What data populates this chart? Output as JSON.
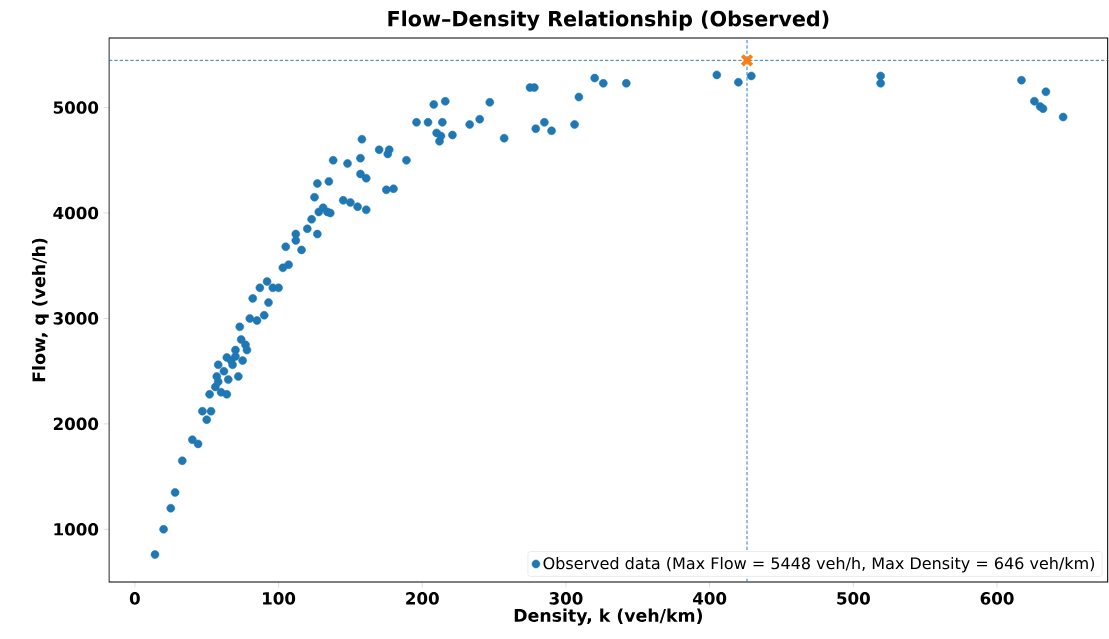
{
  "chart_data": {
    "type": "scatter",
    "title": "Flow–Density Relationship (Observed)",
    "xlabel": "Density, k (veh/km)",
    "ylabel": "Flow, q (veh/h)",
    "xlim": [
      -18,
      677
    ],
    "ylim": [
      500,
      5660
    ],
    "xticks": [
      0,
      100,
      200,
      300,
      400,
      500,
      600
    ],
    "yticks": [
      1000,
      2000,
      3000,
      4000,
      5000
    ],
    "grid": false,
    "legend": "bottom right",
    "series": [
      {
        "name": "Observed data (Max Flow = 5448 veh/h, Max Density = 646 veh/km)",
        "color": "#1f77b4",
        "marker": "circle",
        "x": [
          14,
          20,
          25,
          28,
          33,
          40,
          44,
          47,
          50,
          53,
          52,
          56,
          57,
          58,
          58,
          60,
          62,
          64,
          64,
          65,
          67,
          68,
          70,
          72,
          70,
          75,
          74,
          78,
          73,
          77,
          80,
          82,
          85,
          87,
          90,
          93,
          92,
          96,
          100,
          103,
          107,
          105,
          112,
          112,
          116,
          120,
          123,
          125,
          128,
          127,
          127,
          131,
          134,
          136,
          135,
          138,
          145,
          148,
          150,
          155,
          157,
          158,
          157,
          161,
          161,
          170,
          175,
          176,
          177,
          180,
          189,
          196,
          204,
          208,
          210,
          212,
          213,
          214,
          216,
          221,
          233,
          240,
          247,
          257,
          275,
          278,
          279,
          285,
          290,
          306,
          309,
          320,
          326,
          342,
          405,
          420,
          429,
          519,
          519,
          617,
          626,
          634,
          630,
          632,
          646
        ],
        "values": [
          760,
          1000,
          1200,
          1350,
          1650,
          1850,
          1810,
          2120,
          2040,
          2120,
          2280,
          2350,
          2450,
          2560,
          2400,
          2300,
          2500,
          2280,
          2630,
          2420,
          2600,
          2560,
          2640,
          2450,
          2700,
          2600,
          2800,
          2700,
          2920,
          2750,
          3000,
          3190,
          2980,
          3290,
          3030,
          3150,
          3350,
          3290,
          3290,
          3480,
          3510,
          3680,
          3740,
          3800,
          3650,
          3850,
          3940,
          4150,
          4010,
          3800,
          4280,
          4050,
          4010,
          4000,
          4300,
          4500,
          4120,
          4470,
          4100,
          4060,
          4370,
          4700,
          4520,
          4030,
          4330,
          4600,
          4220,
          4560,
          4600,
          4230,
          4500,
          4860,
          4860,
          5030,
          4760,
          4680,
          4730,
          4860,
          5060,
          4740,
          4840,
          4890,
          5050,
          4710,
          5190,
          5190,
          4800,
          4860,
          4780,
          4840,
          5100,
          5280,
          5230,
          5230,
          5310,
          5240,
          5300,
          5300,
          5230,
          5260,
          5060,
          5150,
          5010,
          4990,
          4910
        ]
      },
      {
        "color": "#ff7f0e",
        "marker": "cross",
        "x": [
          426
        ],
        "values": [
          5448
        ]
      }
    ],
    "ref_lines": [
      {
        "axis": "x",
        "value": 426,
        "color": "#1f77b4",
        "line_style": "dashed"
      },
      {
        "axis": "y",
        "value": 5448,
        "color": "#1f77b4",
        "line_style": "dashed"
      }
    ]
  }
}
